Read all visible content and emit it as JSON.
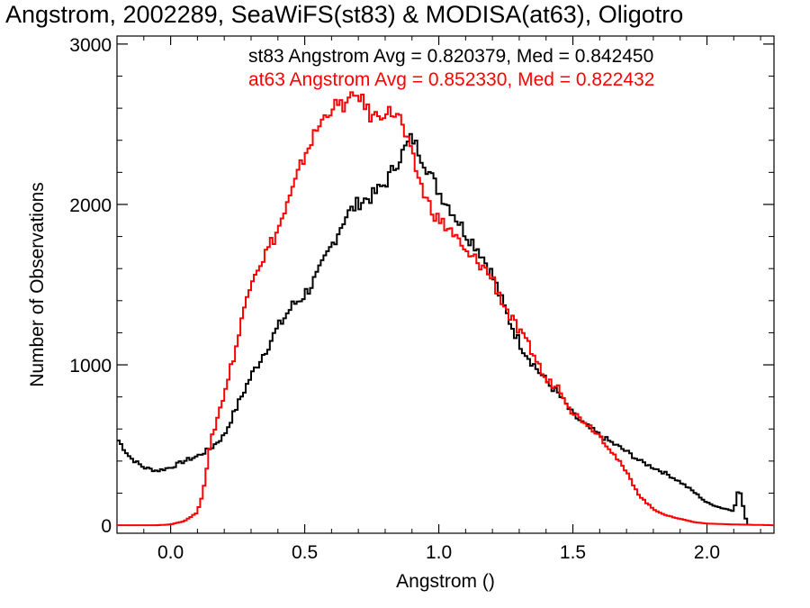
{
  "chart_data": {
    "type": "line",
    "title": "Angstrom, 2002289, SeaWiFS(st83) & MODISA(at63), Oligotro",
    "xlabel": "Angstrom ()",
    "ylabel": "Number of Observations",
    "xlim": [
      -0.2,
      2.25
    ],
    "ylim": [
      -50,
      3050
    ],
    "x_ticks": [
      0.0,
      0.5,
      1.0,
      1.5,
      2.0
    ],
    "x_tick_labels": [
      "0.0",
      "0.5",
      "1.0",
      "1.5",
      "2.0"
    ],
    "y_ticks": [
      0,
      1000,
      2000,
      3000
    ],
    "y_tick_labels": [
      "0",
      "1000",
      "2000",
      "3000"
    ],
    "grid": false,
    "legend_placement": "top-right",
    "series": [
      {
        "name": "st83",
        "color": "#000000",
        "label": "st83 Angstrom Avg = 0.820379, Med = 0.842450",
        "x": [
          -0.2,
          -0.15,
          -0.1,
          -0.05,
          0.0,
          0.05,
          0.1,
          0.15,
          0.2,
          0.25,
          0.3,
          0.35,
          0.4,
          0.45,
          0.5,
          0.55,
          0.6,
          0.65,
          0.7,
          0.75,
          0.8,
          0.85,
          0.9,
          0.95,
          1.0,
          1.05,
          1.1,
          1.15,
          1.2,
          1.25,
          1.3,
          1.35,
          1.4,
          1.45,
          1.5,
          1.55,
          1.6,
          1.65,
          1.7,
          1.75,
          1.8,
          1.85,
          1.9,
          1.95,
          2.0,
          2.05,
          2.1,
          2.12,
          2.15
        ],
        "y": [
          540,
          420,
          360,
          340,
          360,
          400,
          430,
          480,
          560,
          750,
          930,
          1080,
          1230,
          1360,
          1440,
          1560,
          1740,
          1920,
          2010,
          2050,
          2130,
          2280,
          2420,
          2250,
          2080,
          1960,
          1820,
          1720,
          1560,
          1330,
          1140,
          1010,
          900,
          810,
          690,
          620,
          560,
          510,
          460,
          400,
          360,
          320,
          270,
          210,
          140,
          110,
          90,
          240,
          0
        ]
      },
      {
        "name": "at63",
        "color": "#ff0000",
        "label": "at63 Angstrom Avg = 0.852330, Med = 0.822432",
        "x": [
          -0.2,
          -0.05,
          0.0,
          0.05,
          0.1,
          0.12,
          0.15,
          0.2,
          0.25,
          0.3,
          0.35,
          0.4,
          0.45,
          0.5,
          0.55,
          0.6,
          0.65,
          0.7,
          0.75,
          0.8,
          0.85,
          0.9,
          0.95,
          1.0,
          1.05,
          1.1,
          1.15,
          1.2,
          1.25,
          1.3,
          1.35,
          1.4,
          1.45,
          1.5,
          1.55,
          1.6,
          1.65,
          1.7,
          1.75,
          1.8,
          1.85,
          1.9,
          1.95,
          2.0,
          2.1,
          2.25
        ],
        "y": [
          0,
          0,
          5,
          25,
          80,
          200,
          520,
          820,
          1150,
          1550,
          1680,
          1840,
          2060,
          2310,
          2480,
          2610,
          2620,
          2690,
          2540,
          2580,
          2560,
          2300,
          2040,
          1900,
          1830,
          1690,
          1640,
          1540,
          1350,
          1200,
          1080,
          900,
          860,
          700,
          640,
          560,
          450,
          330,
          180,
          100,
          60,
          40,
          20,
          10,
          5,
          0
        ]
      }
    ]
  }
}
